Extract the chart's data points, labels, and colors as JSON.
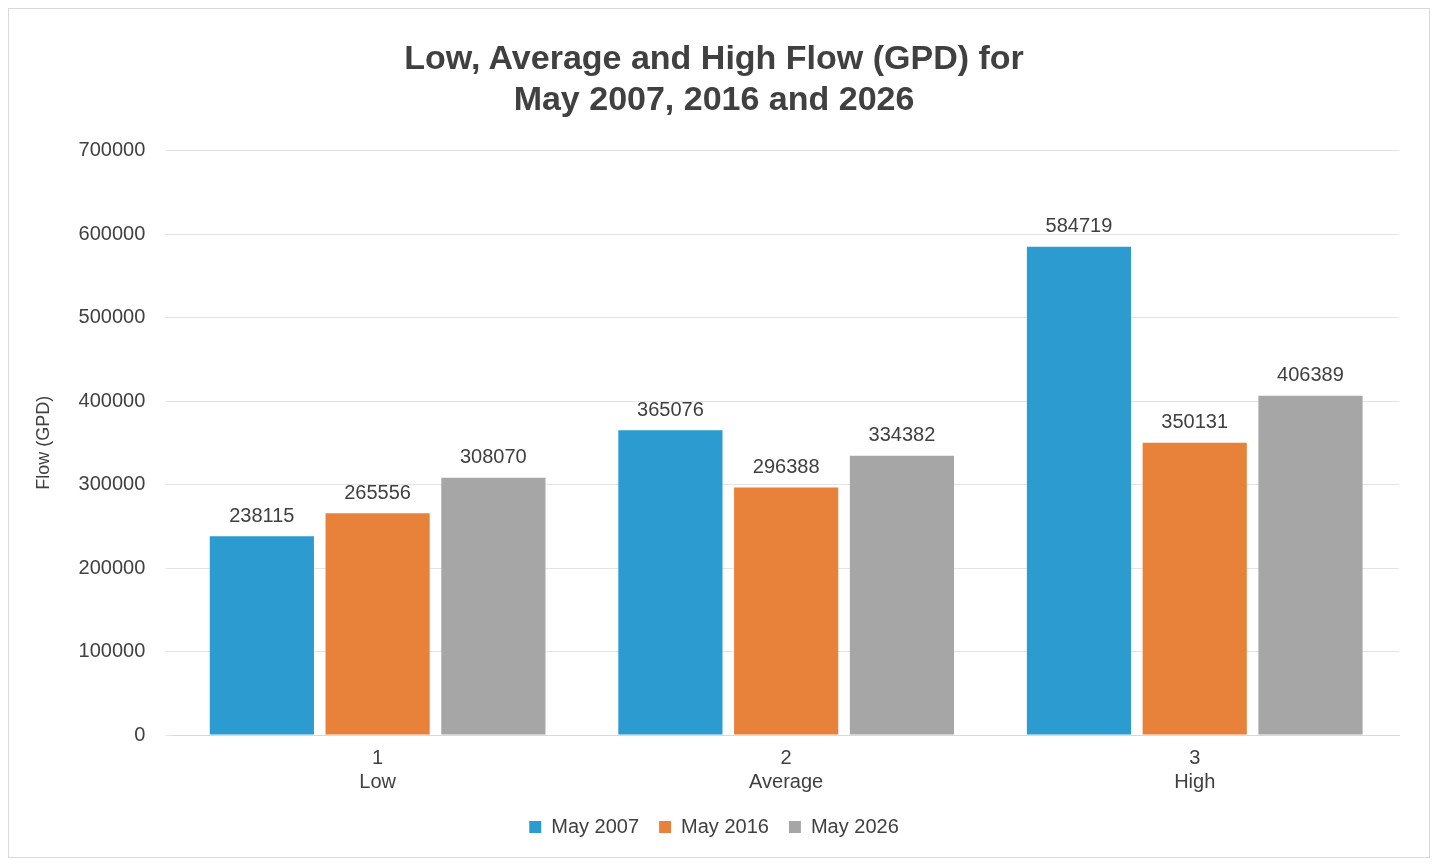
{
  "chart_data": {
    "type": "bar",
    "title": "Low, Average and High Flow (GPD) for\nMay 2007, 2016 and 2026",
    "ylabel": "Flow (GPD)",
    "categories": [
      "1\nLow",
      "2\nAverage",
      "3\nHigh"
    ],
    "series": [
      {
        "name": "May 2007",
        "color": "#2b9bd0",
        "values": [
          238115,
          365076,
          584719
        ]
      },
      {
        "name": "May 2016",
        "color": "#e8823a",
        "values": [
          265556,
          296388,
          350131
        ]
      },
      {
        "name": "May 2026",
        "color": "#a6a6a6",
        "values": [
          308070,
          334382,
          406389
        ]
      }
    ],
    "ylim": [
      0,
      700000
    ],
    "yticks": [
      0,
      100000,
      200000,
      300000,
      400000,
      500000,
      600000,
      700000
    ],
    "grid": "y",
    "legend": "bottom",
    "data_labels": true
  }
}
